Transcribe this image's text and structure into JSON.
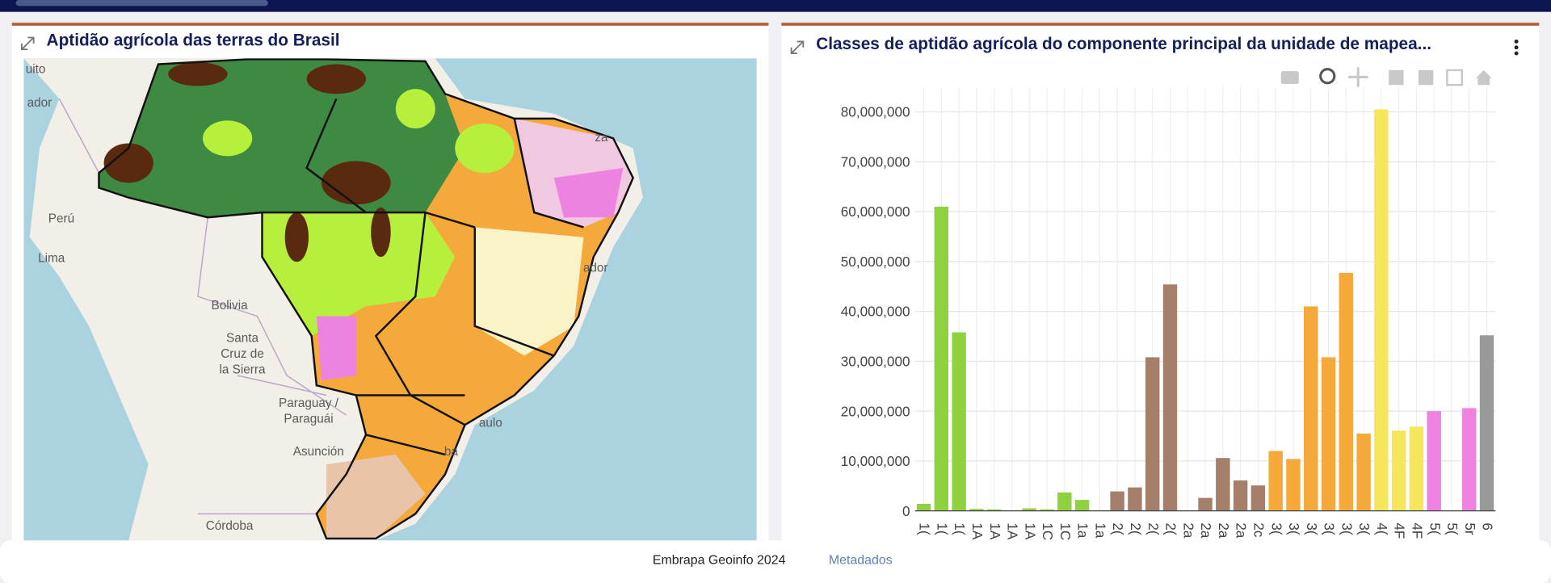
{
  "map_panel": {
    "title": "Aptidão agrícola das terras do Brasil",
    "labels": {
      "quito": "uito",
      "ecuador": "ador",
      "peru": "Perú",
      "lima": "Lima",
      "bolivia": "Bolivia",
      "santa_cruz": [
        "Santa",
        "Cruz de",
        "la Sierra"
      ],
      "paraguay": [
        "Paraguay /",
        "Paraguái"
      ],
      "asuncion": "Asunción",
      "cordoba": "Córdoba",
      "salvador": "ador",
      "sao_paulo": "aulo",
      "curitiba": "ba",
      "fortaleza": "za"
    }
  },
  "footer": {
    "credit": "Embrapa Geoinfo 2024",
    "link": "Metadados"
  },
  "chart_data": {
    "type": "bar",
    "title": "Classes de aptidão agrícola do componente principal da unidade de mapea...",
    "categories": [
      "1(",
      "1(",
      "1(",
      "1A",
      "1A",
      "1A",
      "1A",
      "1C",
      "1C",
      "1a",
      "1a",
      "2(",
      "2(",
      "2(",
      "2(",
      "2a",
      "2a",
      "2a",
      "2a",
      "2c",
      "3(",
      "3(",
      "3(",
      "3(",
      "3(",
      "3(",
      "4(",
      "4F",
      "4F",
      "5(",
      "5(",
      "5r",
      "6"
    ],
    "values": [
      1400000,
      61000000,
      35800000,
      400000,
      300000,
      100000,
      500000,
      300000,
      3700000,
      2200000,
      100000,
      3900000,
      4700000,
      30800000,
      45400000,
      100000,
      2600000,
      10600000,
      6100000,
      5100000,
      12000000,
      10400000,
      41000000,
      30800000,
      47700000,
      15500000,
      80500000,
      16100000,
      16900000,
      20000000,
      100000,
      20600000,
      35200000
    ],
    "colors": [
      "#8fd13f",
      "#8fd13f",
      "#8fd13f",
      "#8fd13f",
      "#8fd13f",
      "#8fd13f",
      "#8fd13f",
      "#8fd13f",
      "#8fd13f",
      "#8fd13f",
      "#8fd13f",
      "#a57f6a",
      "#a57f6a",
      "#a57f6a",
      "#a57f6a",
      "#a57f6a",
      "#a57f6a",
      "#a57f6a",
      "#a57f6a",
      "#a57f6a",
      "#f5a93a",
      "#f5a93a",
      "#f5a93a",
      "#f5a93a",
      "#f5a93a",
      "#f5a93a",
      "#f5e65b",
      "#f5e65b",
      "#f5e65b",
      "#ee82e0",
      "#ee82e0",
      "#ee82e0",
      "#999999"
    ],
    "ylim": [
      0,
      85000000
    ],
    "yticks": [
      0,
      {
        "value": 10000000,
        "label": "10,000,000"
      },
      {
        "value": 20000000,
        "label": "20,000,000"
      },
      {
        "value": 30000000,
        "label": "30,000,000"
      },
      {
        "value": 40000000,
        "label": "40,000,000"
      },
      {
        "value": 50000000,
        "label": "50,000,000"
      },
      {
        "value": 60000000,
        "label": "60,000,000"
      },
      {
        "value": 70000000,
        "label": "70,000,000"
      },
      {
        "value": 80000000,
        "label": "80,000,000"
      }
    ],
    "grid": true
  }
}
